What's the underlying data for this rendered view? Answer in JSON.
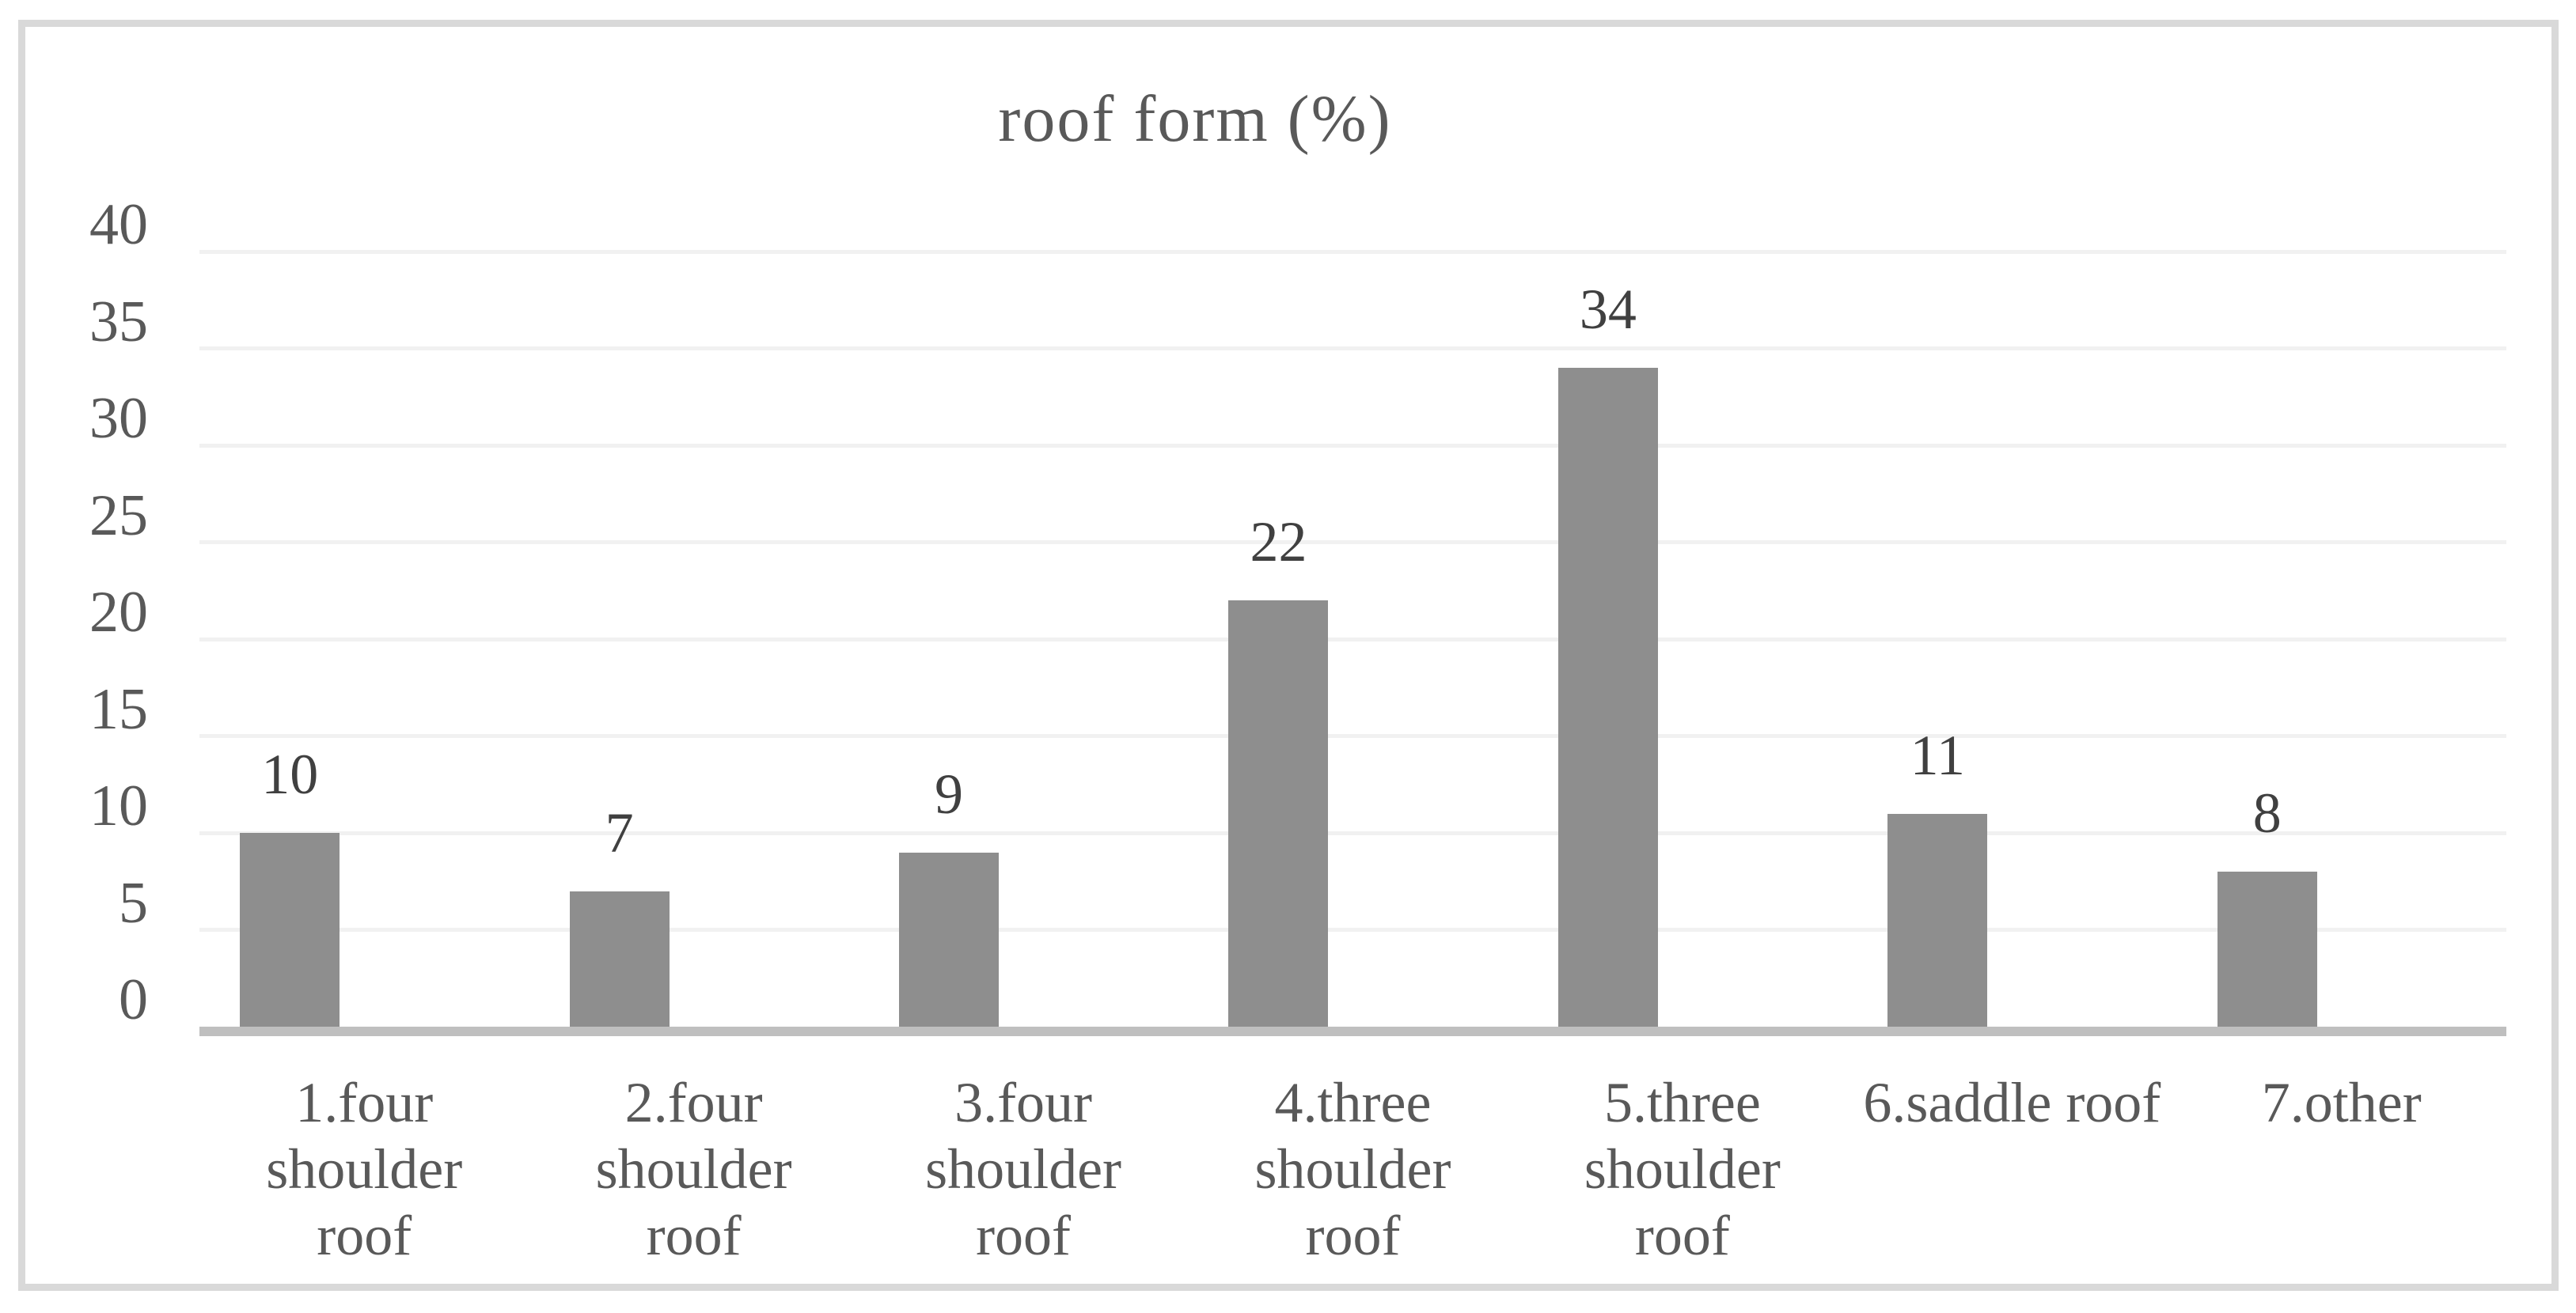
{
  "figure": {
    "background_color": "#ffffff",
    "frame_border_color": "#d9d9d9"
  },
  "chart_data": {
    "type": "bar",
    "title": "roof form (%)",
    "categories": [
      "1.four shoulder roof",
      "2.four shoulder roof",
      "3.four shoulder roof",
      "4.three shoulder roof",
      "5.three shoulder roof",
      "6.saddle roof",
      "7.other"
    ],
    "category_label_lines": [
      [
        "1.four",
        "shoulder",
        "roof"
      ],
      [
        "2.four",
        "shoulder",
        "roof"
      ],
      [
        "3.four",
        "shoulder",
        "roof"
      ],
      [
        "4.three",
        "shoulder",
        "roof"
      ],
      [
        "5.three",
        "shoulder",
        "roof"
      ],
      [
        "6.saddle roof"
      ],
      [
        "7.other"
      ]
    ],
    "values": [
      10,
      7,
      9,
      22,
      34,
      11,
      8
    ],
    "xlabel": "",
    "ylabel": "",
    "ylim": [
      0,
      40
    ],
    "yticks": [
      0,
      5,
      10,
      15,
      20,
      25,
      30,
      35,
      40
    ],
    "grid": true,
    "legend_position": "none",
    "data_labels": "outside-end",
    "bar_color": "#8e8e8e",
    "gridline_color": "#f1f1f1",
    "axis_line_color": "#bfbfbf",
    "title_color": "#595959",
    "tick_label_color": "#595959",
    "category_label_color": "#595959",
    "data_label_color": "#404040"
  }
}
